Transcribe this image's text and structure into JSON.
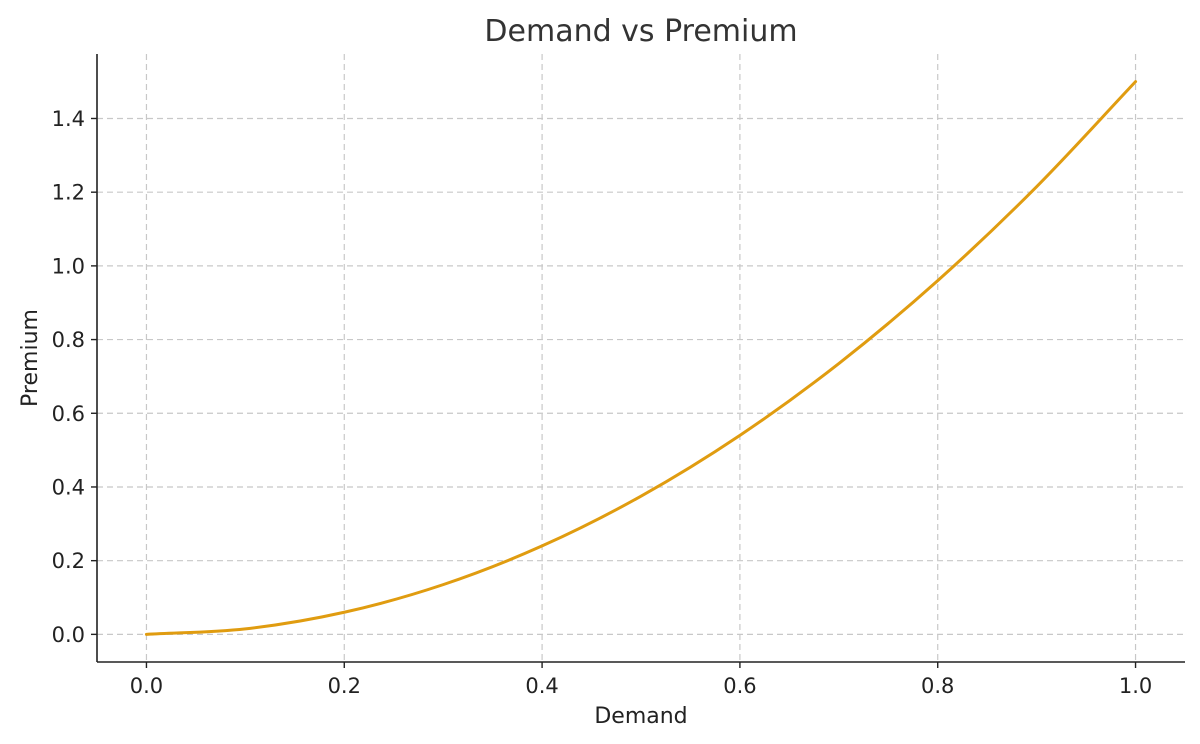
{
  "chart_data": {
    "type": "line",
    "title": "Demand vs Premium",
    "xlabel": "Demand",
    "ylabel": "Premium",
    "xlim": [
      -0.05,
      1.05
    ],
    "ylim": [
      -0.075,
      1.575
    ],
    "xticks": [
      0.0,
      0.2,
      0.4,
      0.6,
      0.8,
      1.0
    ],
    "xtick_labels": [
      "0.0",
      "0.2",
      "0.4",
      "0.6",
      "0.8",
      "1.0"
    ],
    "yticks": [
      0.0,
      0.2,
      0.4,
      0.6,
      0.8,
      1.0,
      1.2,
      1.4
    ],
    "ytick_labels": [
      "0.0",
      "0.2",
      "0.4",
      "0.6",
      "0.8",
      "1.0",
      "1.2",
      "1.4"
    ],
    "grid": true,
    "series": [
      {
        "color": "#e09c10",
        "x": [
          0.0,
          0.1,
          0.2,
          0.3,
          0.4,
          0.5,
          0.6,
          0.7,
          0.8,
          0.9,
          1.0
        ],
        "y": [
          0.0,
          0.015,
          0.06,
          0.135,
          0.24,
          0.375,
          0.54,
          0.735,
          0.96,
          1.215,
          1.5
        ]
      }
    ]
  }
}
